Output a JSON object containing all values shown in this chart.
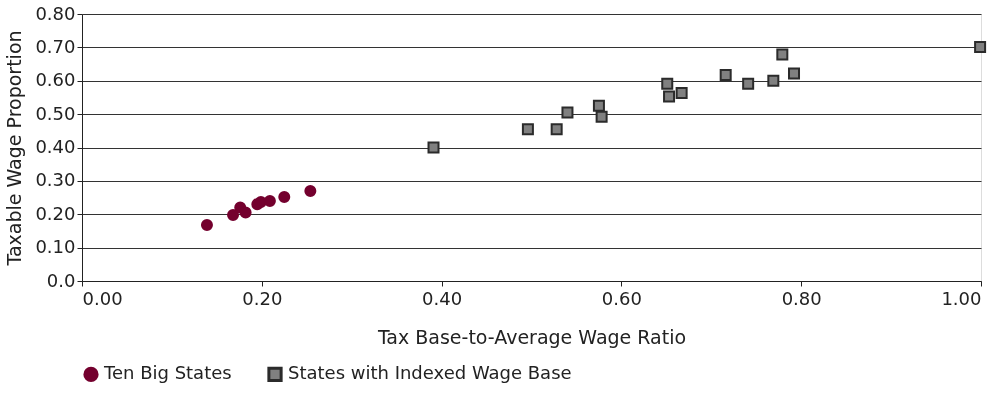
{
  "chart_data": {
    "type": "scatter",
    "xlabel": "Tax Base-to-Average Wage Ratio",
    "ylabel": "Taxable Wage Proportion",
    "xlim": [
      0,
      1
    ],
    "xticks": [
      {
        "value": 0,
        "label": "0.00"
      },
      {
        "value": 0.2,
        "label": "0.20"
      },
      {
        "value": 0.4,
        "label": "0.40"
      },
      {
        "value": 0.6,
        "label": "0.60"
      },
      {
        "value": 0.8,
        "label": "0.80"
      },
      {
        "value": 1,
        "label": "1.00"
      }
    ],
    "ylim": [
      0,
      0.8
    ],
    "yticks": [
      {
        "value": 0,
        "label": "0.0"
      },
      {
        "value": 0.1,
        "label": "0.10"
      },
      {
        "value": 0.2,
        "label": "0.20"
      },
      {
        "value": 0.3,
        "label": "0.30"
      },
      {
        "value": 0.4,
        "label": "0.40"
      },
      {
        "value": 0.5,
        "label": "0.50"
      },
      {
        "value": 0.6,
        "label": "0.60"
      },
      {
        "value": 0.7,
        "label": "0.70"
      },
      {
        "value": 0.8,
        "label": "0.80"
      }
    ],
    "grid": "y",
    "legend": "bottom",
    "series": [
      {
        "name": "Ten Big States",
        "color": "#74002e",
        "marker": "circle",
        "x": [
          0.139,
          0.168,
          0.176,
          0.182,
          0.195,
          0.199,
          0.209,
          0.225,
          0.254
        ],
        "values": [
          0.168,
          0.198,
          0.22,
          0.205,
          0.23,
          0.237,
          0.24,
          0.252,
          0.27
        ]
      },
      {
        "name": "States with Indexed Wage Base",
        "color": "#808080",
        "marker": "square",
        "x": [
          0.391,
          0.496,
          0.528,
          0.54,
          0.575,
          0.578,
          0.651,
          0.653,
          0.667,
          0.716,
          0.741,
          0.769,
          0.779,
          0.792,
          0.999
        ],
        "values": [
          0.4,
          0.455,
          0.455,
          0.505,
          0.525,
          0.492,
          0.591,
          0.553,
          0.563,
          0.617,
          0.591,
          0.6,
          0.679,
          0.622,
          0.701
        ]
      }
    ]
  }
}
